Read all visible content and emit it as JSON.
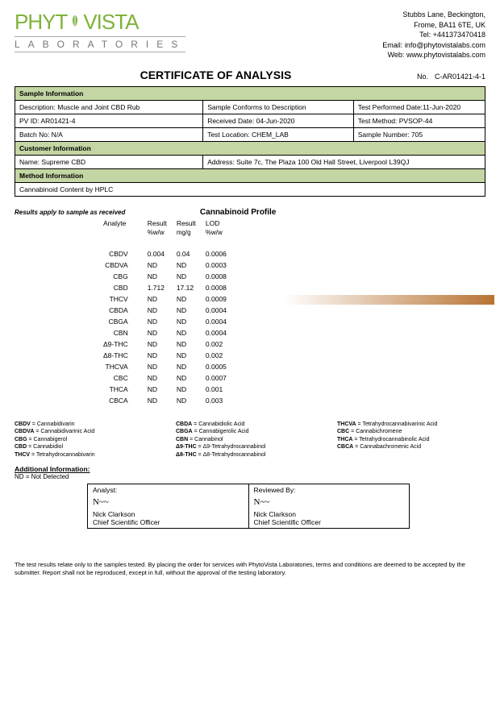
{
  "logo": {
    "brand_top": "PHYT",
    "brand_top2": "VISTA",
    "brand_sub": "LABORATORIES",
    "brand_color": "#7eb338"
  },
  "contact": {
    "l1": "Stubbs Lane, Beckington,",
    "l2": "Frome, BA11 6TE, UK",
    "tel_label": "Tel:",
    "tel": "+441373470418",
    "email_label": "Email:",
    "email": "info@phytovistalabs.com",
    "web_label": "Web:",
    "web": "www.phytovistalabs.com"
  },
  "title": "CERTIFICATE OF ANALYSIS",
  "cert_no_label": "No.",
  "cert_no": "C-AR01421-4-1",
  "sections": {
    "sample": "Sample Information",
    "customer": "Customer Information",
    "method": "Method Information"
  },
  "sample": {
    "desc": "Description: Muscle and Joint CBD Rub",
    "conforms": "Sample Conforms to Description",
    "test_date": "Test Performed Date:11-Jun-2020",
    "pv_id": "PV ID: AR01421-4",
    "received": "Received Date: 04-Jun-2020",
    "method": "Test Method: PVSOP-44",
    "batch": "Batch No: N/A",
    "location": "Test Location: CHEM_LAB",
    "sample_no": "Sample Number:   705"
  },
  "customer": {
    "name": "Name:      Supreme CBD",
    "address": "Address: Suite 7c, The Plaza 100 Old Hall Street, Liverpool L39QJ"
  },
  "method": {
    "text": "Cannabinoid Content by HPLC"
  },
  "profile": {
    "results_note": "Results apply to sample as received",
    "title": "Cannabinoid Profile",
    "cols": {
      "analyte": "Analyte",
      "r1": "Result",
      "r1u": "%w/w",
      "r2": "Result",
      "r2u": "mg/g",
      "lod": "LOD",
      "lodu": "%w/w"
    },
    "rows": [
      {
        "a": "CBDV",
        "r1": "0.004",
        "r2": "0.04",
        "lod": "0.0006"
      },
      {
        "a": "CBDVA",
        "r1": "ND",
        "r2": "ND",
        "lod": "0.0003"
      },
      {
        "a": "CBG",
        "r1": "ND",
        "r2": "ND",
        "lod": "0.0008"
      },
      {
        "a": "CBD",
        "r1": "1.712",
        "r2": "17.12",
        "lod": "0.0008"
      },
      {
        "a": "THCV",
        "r1": "ND",
        "r2": "ND",
        "lod": "0.0009"
      },
      {
        "a": "CBDA",
        "r1": "ND",
        "r2": "ND",
        "lod": "0.0004"
      },
      {
        "a": "CBGA",
        "r1": "ND",
        "r2": "ND",
        "lod": "0.0004"
      },
      {
        "a": "CBN",
        "r1": "ND",
        "r2": "ND",
        "lod": "0.0004"
      },
      {
        "a": "Δ9-THC",
        "r1": "ND",
        "r2": "ND",
        "lod": "0.002"
      },
      {
        "a": "Δ8-THC",
        "r1": "ND",
        "r2": "ND",
        "lod": "0.002"
      },
      {
        "a": "THCVA",
        "r1": "ND",
        "r2": "ND",
        "lod": "0.0005"
      },
      {
        "a": "CBC",
        "r1": "ND",
        "r2": "ND",
        "lod": "0.0007"
      },
      {
        "a": "THCA",
        "r1": "ND",
        "r2": "ND",
        "lod": "0.001"
      },
      {
        "a": "CBCA",
        "r1": "ND",
        "r2": "ND",
        "lod": "0.003"
      }
    ],
    "bar_color_start": "#ffffff",
    "bar_color_end": "#b87333"
  },
  "legend": [
    {
      "k": "CBDV",
      "v": "Cannabidivarin"
    },
    {
      "k": "CBDVA",
      "v": "Cannabidivarinic Acid"
    },
    {
      "k": "CBG",
      "v": "Cannabigerol"
    },
    {
      "k": "CBD",
      "v": "Cannabidiol"
    },
    {
      "k": "THCV",
      "v": "Tetrahydrocannabivarin"
    },
    {
      "k": "CBDA",
      "v": "Cannabidiolic Acid"
    },
    {
      "k": "CBGA",
      "v": "Cannabigerolic Acid"
    },
    {
      "k": "CBN",
      "v": "Cannabinol"
    },
    {
      "k": "Δ9-THC",
      "v": "Δ9-Tetrahydrocannabinol"
    },
    {
      "k": "Δ8-THC",
      "v": "Δ8-Tetrahydrocannabinol"
    },
    {
      "k": "THCVA",
      "v": "Tetrahydrocannabivarinic Acid"
    },
    {
      "k": "CBC",
      "v": "Cannabichromene"
    },
    {
      "k": "THCA",
      "v": "Tetrahydrocannabinolic Acid"
    },
    {
      "k": "CBCA",
      "v": "Cannabachromenic Acid"
    }
  ],
  "addl": {
    "head": "Additional Information:",
    "body": "ND = Not Detected"
  },
  "sign": {
    "analyst_label": "Analyst:",
    "reviewed_label": "Reviewed By:",
    "name": "Nick Clarkson",
    "title": "Chief Scientific Officer"
  },
  "footer": "The test results relate only to the samples tested.  By placing the order for services with PhytoVista Laboratories, terms and conditions are deemed to be accepted by the submitter. Report shall not be reproduced, except in full, without the approval of the testing laboratory."
}
